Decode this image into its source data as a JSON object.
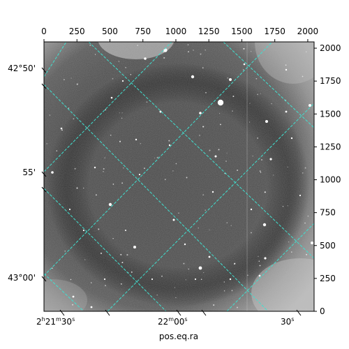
{
  "chart_data": {
    "type": "image",
    "xlabel": "pos.eq.ra",
    "ylabel": "",
    "pixel_axis_top": {
      "ticks": [
        0,
        250,
        500,
        750,
        1000,
        1250,
        1500,
        1750,
        2000
      ],
      "range": [
        0,
        2048
      ]
    },
    "pixel_axis_right": {
      "ticks": [
        0,
        250,
        500,
        750,
        1000,
        1250,
        1500,
        1750,
        2000
      ],
      "range": [
        0,
        2048
      ]
    },
    "ra_ticks_bottom": [
      {
        "label": "2h21m30s",
        "parts": [
          "2",
          "h",
          "21",
          "m",
          "30",
          "s"
        ]
      },
      {
        "label": "22m00s",
        "parts": [
          "22",
          "m",
          "00",
          "s"
        ]
      },
      {
        "label": "30s",
        "parts": [
          "30",
          "s"
        ]
      }
    ],
    "dec_ticks_left": [
      "42°50'",
      "55'",
      "43°00'"
    ],
    "grid": true,
    "grid_color": "#40e0d0",
    "grid_style": "dashed"
  }
}
